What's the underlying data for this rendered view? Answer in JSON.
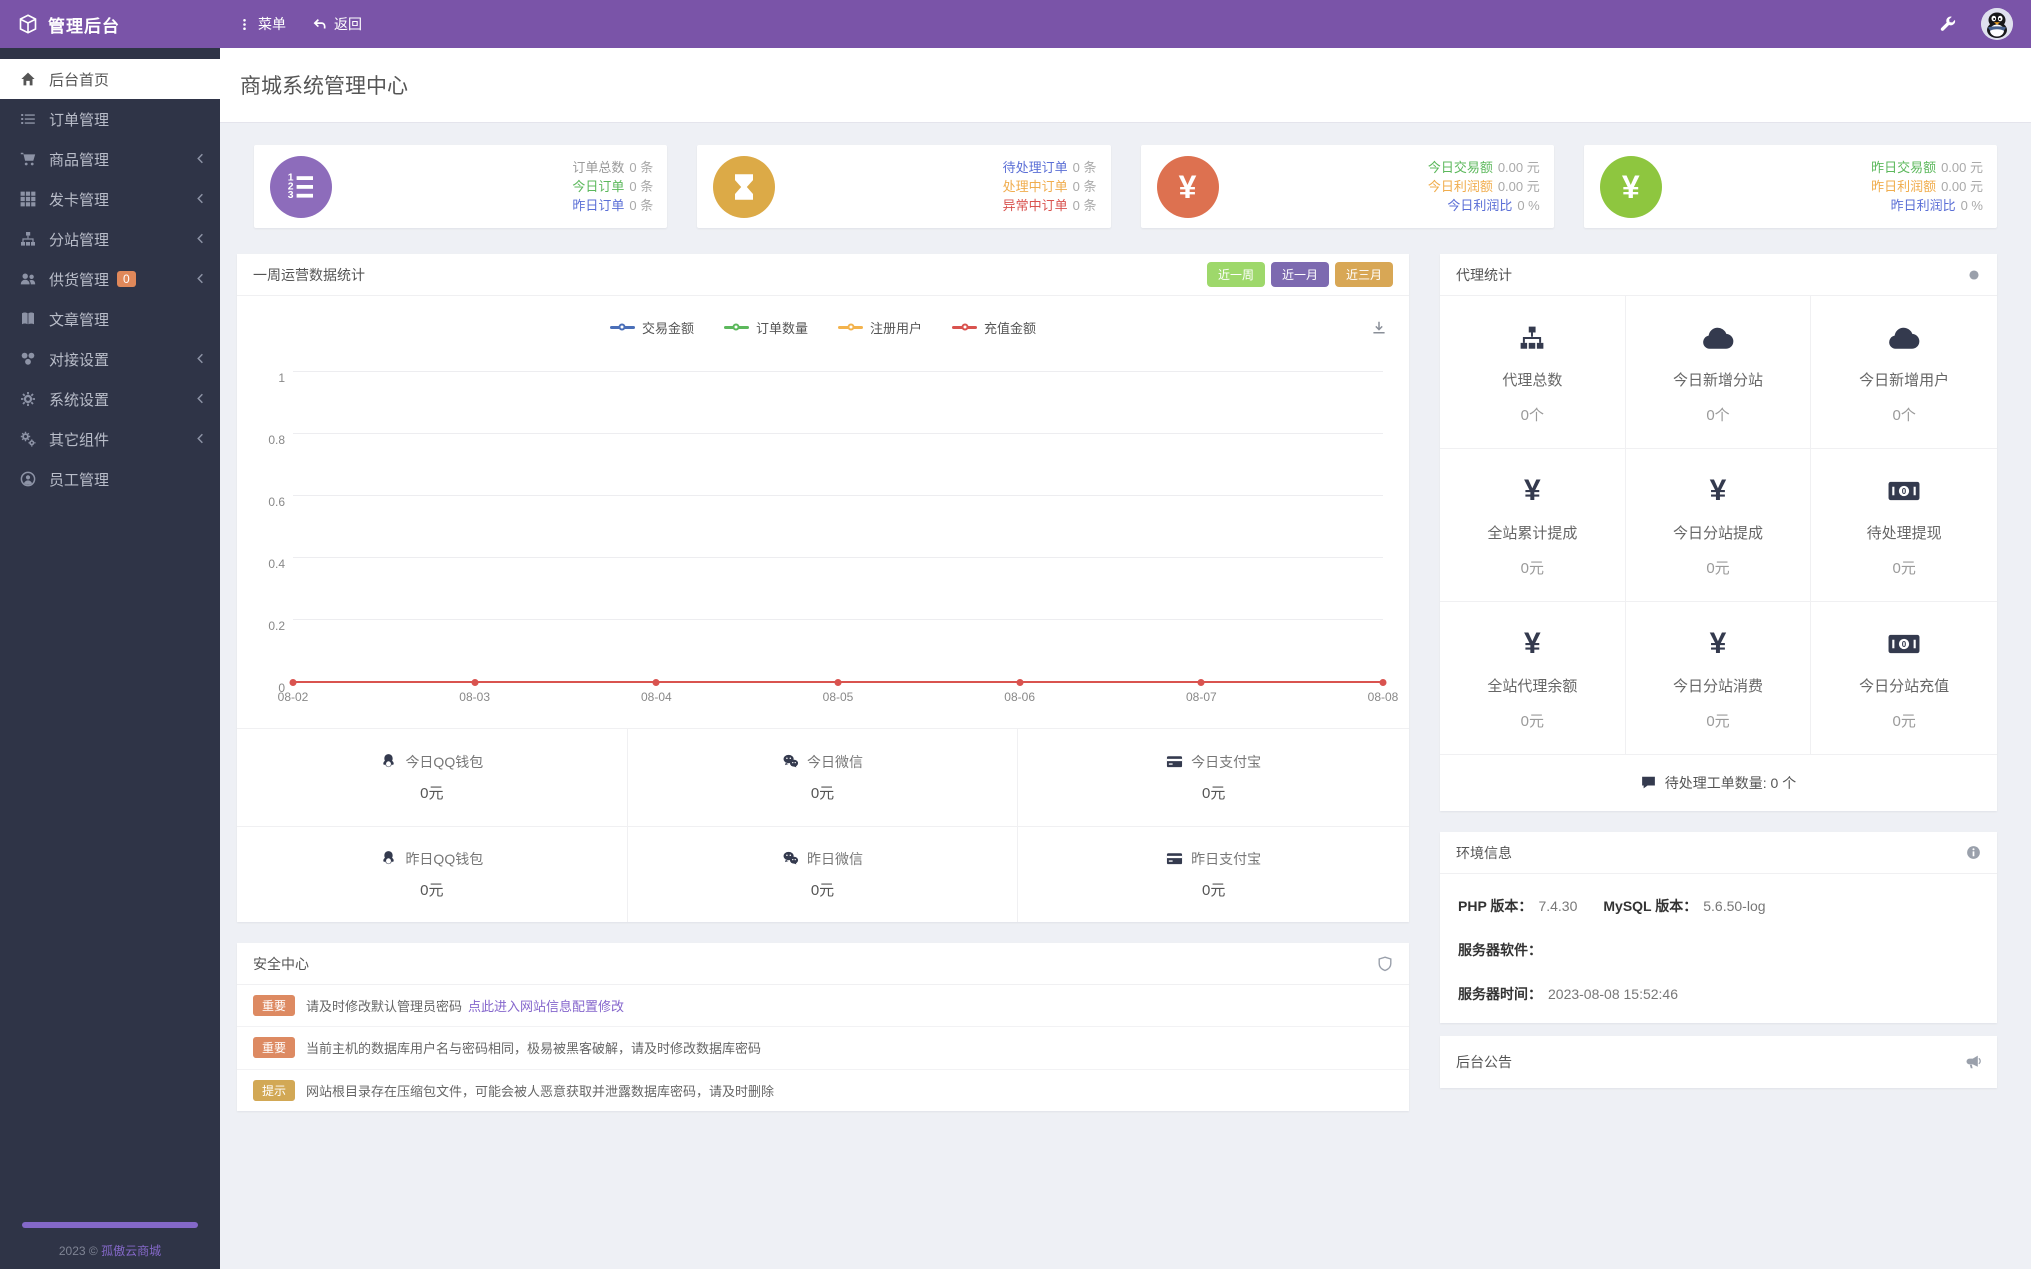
{
  "theme": {
    "topbar_purple": "#7a54a8",
    "sidebar_dark": "#2f3447",
    "content_bg": "#eef0f5",
    "green": "#5cb85c",
    "orange": "#f0ad4e",
    "blue": "#5b6fd6",
    "red": "#d9534f",
    "link_purple": "#8566cc",
    "badge_important": "#dd8a62",
    "badge_tip": "#d2a855",
    "icon_purple": "#8d6cbb",
    "icon_gold": "#dcaa47",
    "icon_red": "#dd7150",
    "icon_green": "#8ec63f"
  },
  "topbar": {
    "brand": "管理后台",
    "menu": "菜单",
    "back": "返回"
  },
  "sidebar": {
    "items": [
      {
        "label": "后台首页"
      },
      {
        "label": "订单管理"
      },
      {
        "label": "商品管理"
      },
      {
        "label": "发卡管理"
      },
      {
        "label": "分站管理"
      },
      {
        "label": "供货管理",
        "badge": "0"
      },
      {
        "label": "文章管理"
      },
      {
        "label": "对接设置"
      },
      {
        "label": "系统设置"
      },
      {
        "label": "其它组件"
      },
      {
        "label": "员工管理"
      }
    ],
    "footer_year": "2023 ©",
    "footer_brand": "孤傲云商城"
  },
  "page": {
    "title": "商城系统管理中心"
  },
  "cards": [
    {
      "rows": [
        {
          "label": "订单总数",
          "value": "0 条"
        },
        {
          "label": "今日订单",
          "value": "0 条"
        },
        {
          "label": "昨日订单",
          "value": "0 条"
        }
      ]
    },
    {
      "rows": [
        {
          "label": "待处理订单",
          "value": "0 条"
        },
        {
          "label": "处理中订单",
          "value": "0 条"
        },
        {
          "label": "异常中订单",
          "value": "0 条"
        }
      ]
    },
    {
      "rows": [
        {
          "label": "今日交易额",
          "value": "0.00 元"
        },
        {
          "label": "今日利润额",
          "value": "0.00 元"
        },
        {
          "label": "今日利润比",
          "value": "0 %"
        }
      ]
    },
    {
      "rows": [
        {
          "label": "昨日交易额",
          "value": "0.00 元"
        },
        {
          "label": "昨日利润额",
          "value": "0.00 元"
        },
        {
          "label": "昨日利润比",
          "value": "0 %"
        }
      ]
    }
  ],
  "chart": {
    "title": "一周运营数据统计",
    "ranges": [
      {
        "label": "近一周",
        "color": "#9ed86b"
      },
      {
        "label": "近一月",
        "color": "#7d6ab0"
      },
      {
        "label": "近三月",
        "color": "#d8a755"
      }
    ]
  },
  "chart_data": {
    "type": "line",
    "title": "一周运营数据统计",
    "categories": [
      "08-02",
      "08-03",
      "08-04",
      "08-05",
      "08-06",
      "08-07",
      "08-08"
    ],
    "series": [
      {
        "name": "交易金额",
        "values": [
          0,
          0,
          0,
          0,
          0,
          0,
          0
        ]
      },
      {
        "name": "订单数量",
        "values": [
          0,
          0,
          0,
          0,
          0,
          0,
          0
        ]
      },
      {
        "name": "注册用户",
        "values": [
          0,
          0,
          0,
          0,
          0,
          0,
          0
        ]
      },
      {
        "name": "充值金额",
        "values": [
          0,
          0,
          0,
          0,
          0,
          0,
          0
        ]
      }
    ],
    "colors": [
      "#4a6fb8",
      "#5cb85c",
      "#f3b34d",
      "#d9534f"
    ],
    "ylim": [
      0,
      1
    ],
    "yticks": [
      0,
      0.2,
      0.4,
      0.6,
      0.8,
      1
    ],
    "legend_position": "top",
    "grid": true
  },
  "pay_stats": {
    "rows": [
      [
        {
          "label": "今日QQ钱包",
          "value": "0元"
        },
        {
          "label": "今日微信",
          "value": "0元"
        },
        {
          "label": "今日支付宝",
          "value": "0元"
        }
      ],
      [
        {
          "label": "昨日QQ钱包",
          "value": "0元"
        },
        {
          "label": "昨日微信",
          "value": "0元"
        },
        {
          "label": "昨日支付宝",
          "value": "0元"
        }
      ]
    ]
  },
  "security": {
    "title": "安全中心",
    "alerts": [
      {
        "badge": "重要",
        "text": "请及时修改默认管理员密码",
        "link": "点此进入网站信息配置修改"
      },
      {
        "badge": "重要",
        "text": "当前主机的数据库用户名与密码相同，极易被黑客破解，请及时修改数据库密码",
        "link": ""
      },
      {
        "badge": "提示",
        "text": "网站根目录存在压缩包文件，可能会被人恶意获取并泄露数据库密码，请及时删除",
        "link": ""
      }
    ]
  },
  "agent": {
    "title": "代理统计",
    "cells": [
      {
        "label": "代理总数",
        "value": "0个"
      },
      {
        "label": "今日新增分站",
        "value": "0个"
      },
      {
        "label": "今日新增用户",
        "value": "0个"
      },
      {
        "label": "全站累计提成",
        "value": "0元"
      },
      {
        "label": "今日分站提成",
        "value": "0元"
      },
      {
        "label": "待处理提现",
        "value": "0元"
      },
      {
        "label": "全站代理余额",
        "value": "0元"
      },
      {
        "label": "今日分站消费",
        "value": "0元"
      },
      {
        "label": "今日分站充值",
        "value": "0元"
      }
    ],
    "footer": "待处理工单数量: 0 个"
  },
  "env": {
    "title": "环境信息",
    "php_label": "PHP 版本：",
    "php_value": "7.4.30",
    "mysql_label": "MySQL 版本：",
    "mysql_value": "5.6.50-log",
    "server_label": "服务器软件：",
    "server_value": "",
    "time_label": "服务器时间：",
    "time_value": "2023-08-08 15:52:46"
  },
  "notice": {
    "title": "后台公告"
  },
  "icons": {
    "yen": "¥"
  }
}
